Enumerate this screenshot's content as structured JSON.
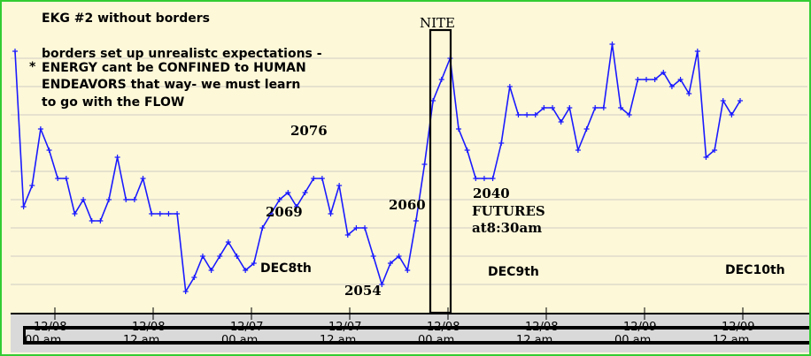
{
  "chart_data": {
    "type": "line",
    "title": "EKG #2 without borders",
    "subtitle_lines": [
      "borders set up unrealistc expectations -",
      "ENERGY cant be CONFINED to HUMAN",
      "ENDEAVORS that way- we must learn",
      "to go with the FLOW"
    ],
    "bullet": "*",
    "x_tick_labels": [
      {
        "date": "12/08",
        "time": "00 am"
      },
      {
        "date": "12/08",
        "time": "12 am"
      },
      {
        "date": "12/07",
        "time": "00 am"
      },
      {
        "date": "12/07",
        "time": "12 am"
      },
      {
        "date": "12/08",
        "time": "00 am"
      },
      {
        "date": "12/08",
        "time": "12 am"
      },
      {
        "date": "12/09",
        "time": "00 am"
      },
      {
        "date": "12/09",
        "time": "12 am"
      }
    ],
    "annotations": [
      {
        "id": "nite",
        "text": "NITE"
      },
      {
        "id": "p2076",
        "text": "2076"
      },
      {
        "id": "p2069",
        "text": "2069"
      },
      {
        "id": "p2060",
        "text": "2060"
      },
      {
        "id": "p2054",
        "text": "2054"
      },
      {
        "id": "p2040",
        "text": "2040"
      },
      {
        "id": "futures",
        "text": "FUTURES"
      },
      {
        "id": "at830",
        "text": "at8:30am"
      },
      {
        "id": "dec8",
        "text": "DEC8th"
      },
      {
        "id": "dec9",
        "text": "DEC9th"
      },
      {
        "id": "dec10",
        "text": "DEC10th"
      }
    ],
    "series": [
      {
        "values": [
          2087,
          2065,
          2068,
          2076,
          2073,
          2069,
          2069,
          2064,
          2066,
          2063,
          2063,
          2066,
          2072,
          2066,
          2066,
          2069,
          2064,
          2064,
          2064,
          2064,
          2053,
          2055,
          2058,
          2056,
          2058,
          2060,
          2058,
          2056,
          2057,
          2062,
          2064,
          2066,
          2067,
          2065,
          2067,
          2069,
          2069,
          2064,
          2068,
          2061,
          2062,
          2062,
          2058,
          2054,
          2057,
          2058,
          2056,
          2063,
          2071,
          2080,
          2083,
          2086,
          2076,
          2073,
          2069,
          2069,
          2069,
          2074,
          2082,
          2078,
          2078,
          2078,
          2079,
          2079,
          2077,
          2079,
          2073,
          2076,
          2079,
          2079,
          2088,
          2079,
          2078,
          2083,
          2083,
          2083,
          2084,
          2082,
          2083,
          2081,
          2087,
          2072,
          2073,
          2080,
          2078,
          2080
        ],
        "ylim": [
          2050,
          2090
        ]
      }
    ],
    "colors": {
      "line": "#1a1aff",
      "background": "#fdf8d8",
      "border": "#33cc33",
      "grid": "#bfbfbf"
    }
  }
}
